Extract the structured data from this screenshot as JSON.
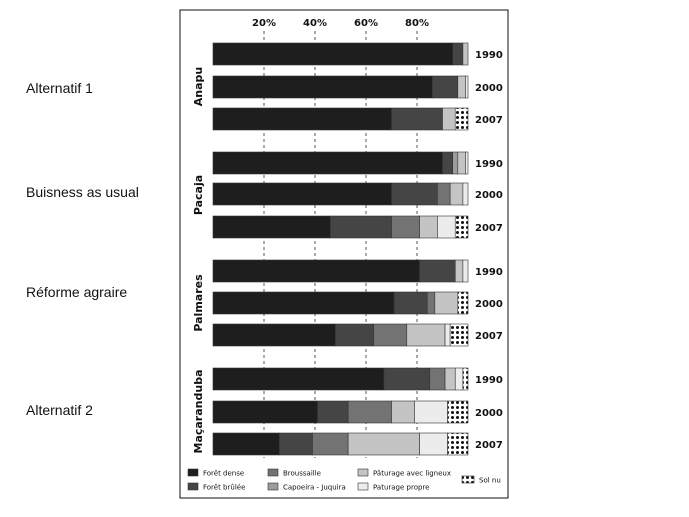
{
  "side_labels": [
    "Alternatif 1",
    "Buisness as usual",
    "Réforme agraire",
    "Alternatif 2"
  ],
  "chart_data": {
    "type": "bar",
    "orientation": "horizontal",
    "stacked": true,
    "x_axis_ticks": [
      "20%",
      "40%",
      "60%",
      "80%"
    ],
    "xlim": [
      0,
      100
    ],
    "grid": true,
    "legend_position": "bottom",
    "categories": [
      {
        "group": "Anapu",
        "year": "1990",
        "values": [
          94,
          4,
          0,
          0,
          2,
          0,
          0
        ]
      },
      {
        "group": "Anapu",
        "year": "2000",
        "values": [
          86,
          10,
          0,
          0,
          3,
          1,
          0
        ]
      },
      {
        "group": "Anapu",
        "year": "2007",
        "values": [
          70,
          20,
          0,
          0,
          5,
          0,
          5
        ]
      },
      {
        "group": "Pacaja",
        "year": "1990",
        "values": [
          90,
          4,
          0,
          2,
          3,
          1,
          0
        ]
      },
      {
        "group": "Pacaja",
        "year": "2000",
        "values": [
          70,
          18,
          5,
          0,
          5,
          2,
          0
        ]
      },
      {
        "group": "Pacaja",
        "year": "2007",
        "values": [
          46,
          24,
          11,
          0,
          7,
          7,
          5
        ]
      },
      {
        "group": "Palmares",
        "year": "1990",
        "values": [
          81,
          14,
          0,
          0,
          3,
          2,
          0
        ]
      },
      {
        "group": "Palmares",
        "year": "2000",
        "values": [
          71,
          13,
          3,
          0,
          9,
          0,
          4
        ]
      },
      {
        "group": "Palmares",
        "year": "2007",
        "values": [
          48,
          15,
          13,
          0,
          15,
          2,
          7
        ]
      },
      {
        "group": "Maçaranduba",
        "year": "1990",
        "values": [
          67,
          18,
          6,
          0,
          4,
          3,
          2
        ]
      },
      {
        "group": "Maçaranduba",
        "year": "2000",
        "values": [
          41,
          12,
          17,
          0,
          9,
          13,
          8
        ]
      },
      {
        "group": "Maçaranduba",
        "year": "2007",
        "values": [
          26,
          13,
          14,
          0,
          28,
          11,
          8
        ]
      }
    ],
    "series": [
      {
        "name": "Forêt dense",
        "color": "#1e1e1e"
      },
      {
        "name": "Forêt brûlée",
        "color": "#454545"
      },
      {
        "name": "Broussaille",
        "color": "#737373"
      },
      {
        "name": "Capoeira - Juquira",
        "color": "#9c9c9c"
      },
      {
        "name": "Pâturage avec ligneux",
        "color": "#c4c4c4"
      },
      {
        "name": "Paturage propre",
        "color": "#ececec"
      },
      {
        "name": "Sol nu",
        "color": "#ffffff",
        "pattern": "dots"
      }
    ]
  }
}
